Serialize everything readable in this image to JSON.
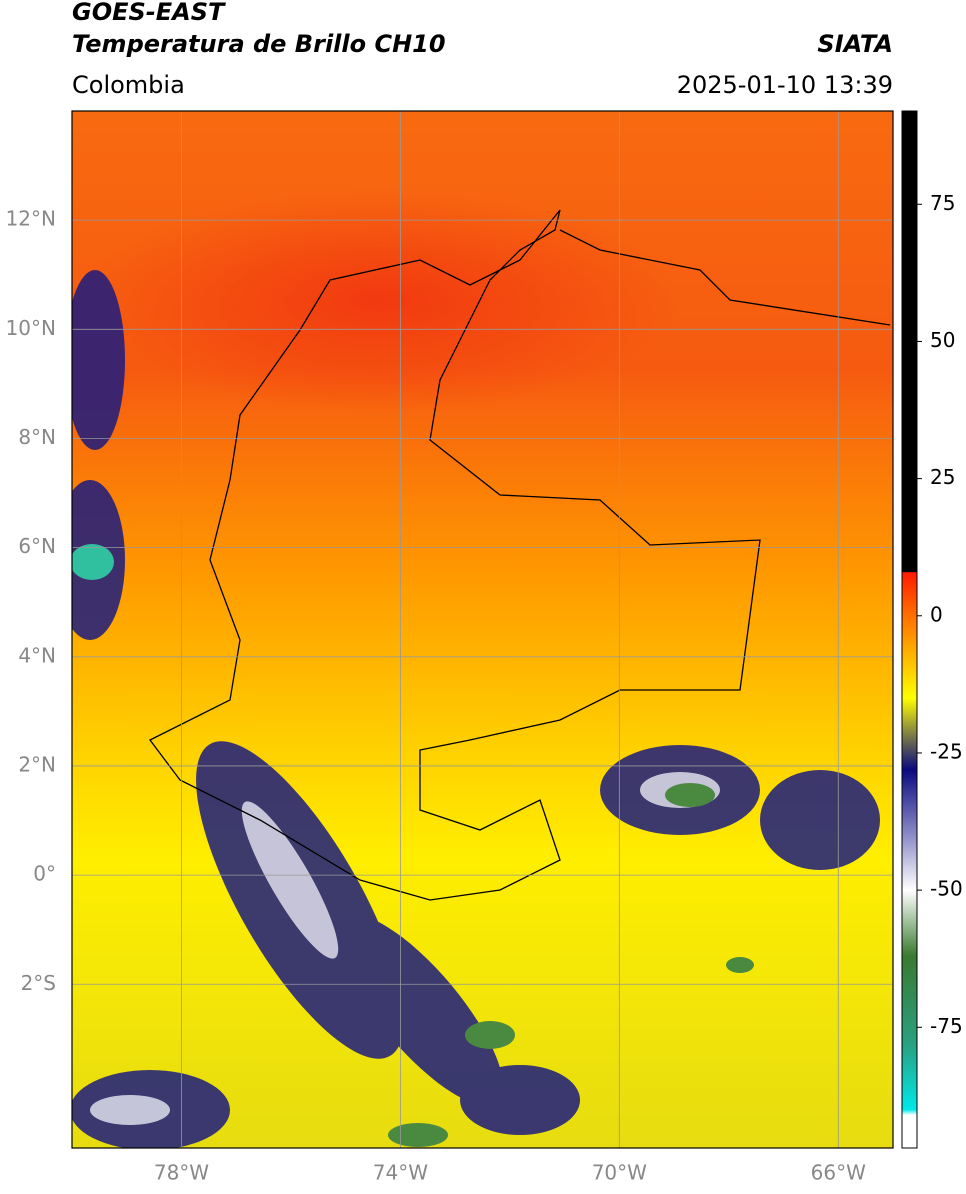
{
  "header": {
    "title": "GOES-EAST",
    "subtitle": "Temperatura de Brillo CH10",
    "source": "SIATA",
    "region": "Colombia",
    "timestamp": "2025-01-10 13:39"
  },
  "chart_data": {
    "type": "map",
    "xlim": [
      -80,
      -65
    ],
    "ylim": [
      -5,
      14
    ],
    "xticks": [
      {
        "value": -78,
        "label": "78°W"
      },
      {
        "value": -74,
        "label": "74°W"
      },
      {
        "value": -70,
        "label": "70°W"
      },
      {
        "value": -66,
        "label": "66°W"
      }
    ],
    "yticks": [
      {
        "value": 12,
        "label": "12°N"
      },
      {
        "value": 10,
        "label": "10°N"
      },
      {
        "value": 8,
        "label": "8°N"
      },
      {
        "value": 6,
        "label": "6°N"
      },
      {
        "value": 4,
        "label": "4°N"
      },
      {
        "value": 2,
        "label": "2°N"
      },
      {
        "value": 0,
        "label": "0°"
      },
      {
        "value": -2,
        "label": "2°S"
      }
    ],
    "grid": true,
    "colorbar": {
      "clim": [
        -97,
        92
      ],
      "ticks": [
        75,
        50,
        25,
        0,
        -25,
        -50,
        -75
      ],
      "stops": [
        {
          "value": 92,
          "color": "#000000"
        },
        {
          "value": 8,
          "color": "#000000"
        },
        {
          "value": 7.9,
          "color": "#ff1a00"
        },
        {
          "value": 0,
          "color": "#ff7000"
        },
        {
          "value": -15,
          "color": "#ffff00"
        },
        {
          "value": -21,
          "color": "#8a8a40"
        },
        {
          "value": -28,
          "color": "#0a0a80"
        },
        {
          "value": -40,
          "color": "#8c8cc8"
        },
        {
          "value": -50,
          "color": "#ffffff"
        },
        {
          "value": -62,
          "color": "#3a7a30"
        },
        {
          "value": -78,
          "color": "#2aa080"
        },
        {
          "value": -90,
          "color": "#00e8e8"
        },
        {
          "value": -91,
          "color": "#ffffff"
        },
        {
          "value": -97,
          "color": "#ffffff"
        }
      ]
    }
  }
}
